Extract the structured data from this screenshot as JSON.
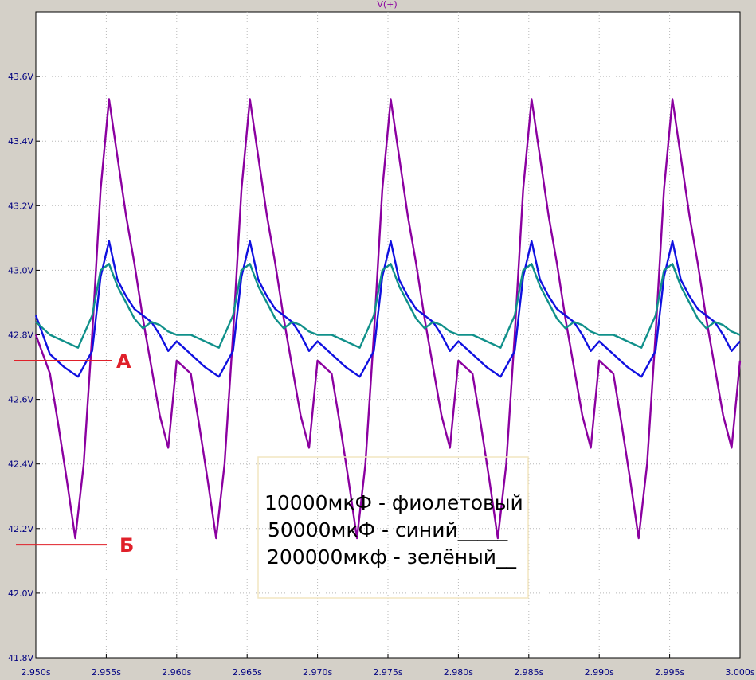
{
  "chart_data": {
    "type": "line",
    "trace_title": "V(+)",
    "xlim": [
      2.95,
      3.0
    ],
    "ylim": [
      41.8,
      43.8
    ],
    "x_ticks": [
      2.95,
      2.955,
      2.96,
      2.965,
      2.97,
      2.975,
      2.98,
      2.985,
      2.99,
      2.995,
      3.0
    ],
    "x_tick_labels": [
      "2.950s",
      "2.955s",
      "2.960s",
      "2.965s",
      "2.970s",
      "2.975s",
      "2.980s",
      "2.985s",
      "2.990s",
      "2.995s",
      "3.000s"
    ],
    "y_ticks": [
      41.8,
      42.0,
      42.2,
      42.4,
      42.6,
      42.8,
      43.0,
      43.2,
      43.4,
      43.6
    ],
    "y_tick_labels": [
      "41.8V",
      "42.0V",
      "42.2V",
      "42.4V",
      "42.6V",
      "42.8V",
      "43.0V",
      "43.2V",
      "43.4V",
      "43.6V"
    ],
    "grid": true,
    "period_s": 0.01,
    "series": [
      {
        "color": "#8b00a0",
        "x": [
          2.95,
          2.951,
          2.9516,
          2.9522,
          2.9528,
          2.9534,
          2.954,
          2.9546,
          2.9552,
          2.9558,
          2.9564,
          2.957,
          2.9576,
          2.9582,
          2.9588,
          2.9594,
          2.96
        ],
        "y": [
          42.8,
          42.68,
          42.52,
          42.35,
          42.17,
          42.4,
          42.8,
          43.25,
          43.53,
          43.35,
          43.17,
          43.02,
          42.85,
          42.7,
          42.55,
          42.45,
          42.72
        ]
      },
      {
        "color": "#1010e0",
        "x": [
          2.95,
          2.951,
          2.952,
          2.953,
          2.954,
          2.9546,
          2.9552,
          2.9558,
          2.9564,
          2.957,
          2.9576,
          2.9582,
          2.9588,
          2.9594,
          2.96
        ],
        "y": [
          42.86,
          42.74,
          42.7,
          42.67,
          42.75,
          42.98,
          43.09,
          42.97,
          42.92,
          42.88,
          42.86,
          42.84,
          42.8,
          42.75,
          42.78
        ]
      },
      {
        "color": "#10908a",
        "x": [
          2.95,
          2.951,
          2.952,
          2.953,
          2.954,
          2.9546,
          2.9552,
          2.9558,
          2.9564,
          2.957,
          2.9576,
          2.9582,
          2.9588,
          2.9594,
          2.96
        ],
        "y": [
          42.84,
          42.8,
          42.78,
          42.76,
          42.86,
          43.0,
          43.02,
          42.95,
          42.9,
          42.85,
          42.82,
          42.84,
          42.83,
          42.81,
          42.8
        ]
      }
    ]
  },
  "markers": [
    {
      "label": "А",
      "value": 42.72
    },
    {
      "label": "Б",
      "value": 42.15
    }
  ],
  "legend": [
    "10000мкФ - фиолетовый",
    "50000мкФ - синий_____",
    "200000мкф - зелёный__"
  ],
  "colors": {
    "background": "#d4d0c8",
    "plot_background": "#ffffff",
    "grid": "#b8b8b8",
    "tick_text": "#000080",
    "marker": "#e0202a",
    "legend_box_border": "#f2e6c0"
  }
}
